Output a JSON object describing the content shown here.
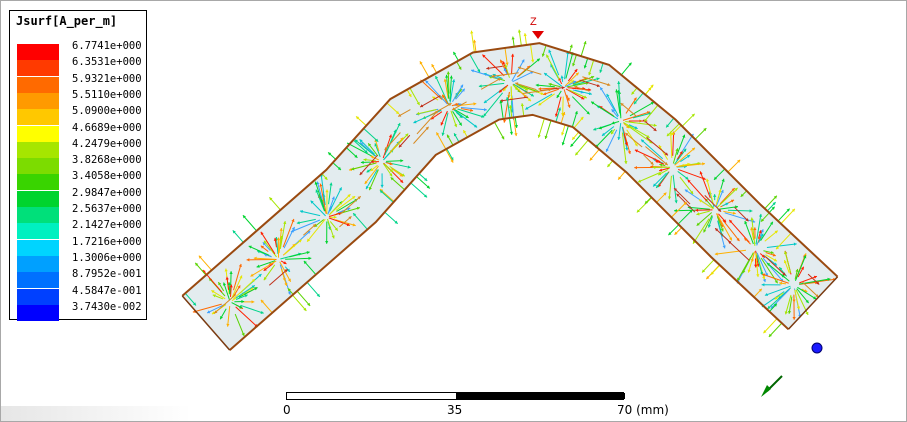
{
  "legend": {
    "title": "Jsurf[A_per_m]",
    "entries": [
      {
        "label": "6.7741e+000",
        "color": "#ff0000"
      },
      {
        "label": "6.3531e+000",
        "color": "#ff3a00"
      },
      {
        "label": "5.9321e+000",
        "color": "#ff6a00"
      },
      {
        "label": "5.5110e+000",
        "color": "#ff9a00"
      },
      {
        "label": "5.0900e+000",
        "color": "#ffc800"
      },
      {
        "label": "4.6689e+000",
        "color": "#ffff00"
      },
      {
        "label": "4.2479e+000",
        "color": "#a6e600"
      },
      {
        "label": "3.8268e+000",
        "color": "#7cdc00"
      },
      {
        "label": "3.4058e+000",
        "color": "#39d400"
      },
      {
        "label": "2.9847e+000",
        "color": "#00d42e"
      },
      {
        "label": "2.5637e+000",
        "color": "#00e07a"
      },
      {
        "label": "2.1427e+000",
        "color": "#00f0c0"
      },
      {
        "label": "1.7216e+000",
        "color": "#00d4ff"
      },
      {
        "label": "1.3006e+000",
        "color": "#00a0ff"
      },
      {
        "label": "8.7952e-001",
        "color": "#0070ff"
      },
      {
        "label": "4.5847e-001",
        "color": "#0040ff"
      },
      {
        "label": "3.7430e-002",
        "color": "#0000ff"
      }
    ]
  },
  "axis": {
    "z_label": "Z"
  },
  "scale": {
    "ticks": [
      "0",
      "35",
      "70 (mm)"
    ]
  },
  "icons": {
    "port_marker": "blue-port-sphere-icon",
    "triad": "axis-triad-icon",
    "z_marker": "red-z-axis-marker-icon"
  }
}
